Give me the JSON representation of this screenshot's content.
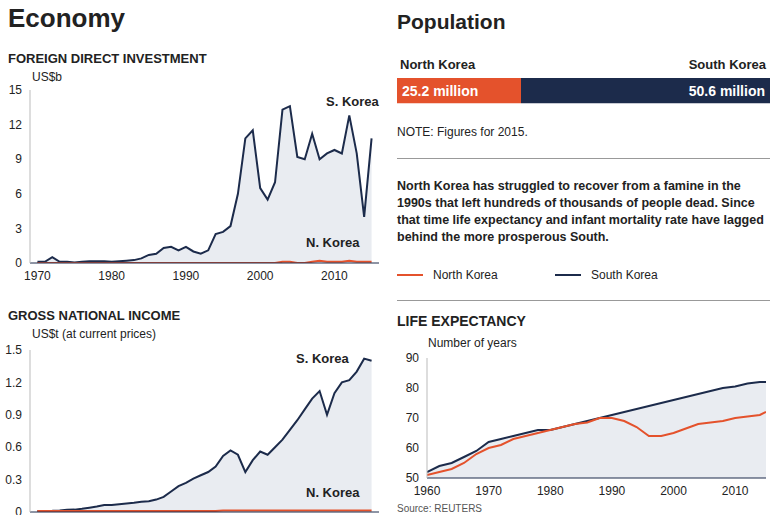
{
  "section_title": "Economy",
  "annotation": "North Korea has struggled to recover from a famine in the 1990s that left hundreds of thousands of people dead. Since that time life expectancy and infant mortality rate have lagged behind the more prosperous South.",
  "source": "Source: REUTERS",
  "chart_data": [
    {
      "type": "area",
      "title": "FOREIGN DIRECT INVESTMENT",
      "y_label": "US$b",
      "x": [
        1970,
        1971,
        1972,
        1973,
        1974,
        1975,
        1976,
        1977,
        1978,
        1979,
        1980,
        1981,
        1982,
        1983,
        1984,
        1985,
        1986,
        1987,
        1988,
        1989,
        1990,
        1991,
        1992,
        1993,
        1994,
        1995,
        1996,
        1997,
        1998,
        1999,
        2000,
        2001,
        2002,
        2003,
        2004,
        2005,
        2006,
        2007,
        2008,
        2009,
        2010,
        2011,
        2012,
        2013,
        2014,
        2015
      ],
      "series": [
        {
          "name": "S. Korea",
          "color": "#1c2b4b",
          "type": "area",
          "values": [
            0.1,
            0.1,
            0.5,
            0.1,
            0.1,
            0.05,
            0.1,
            0.15,
            0.15,
            0.15,
            0.1,
            0.15,
            0.2,
            0.25,
            0.4,
            0.7,
            0.8,
            1.3,
            1.4,
            1.1,
            1.4,
            1.0,
            0.8,
            1.1,
            2.5,
            2.7,
            3.2,
            6.0,
            10.8,
            11.5,
            6.5,
            5.5,
            7.0,
            13.3,
            13.6,
            9.2,
            9.0,
            11.2,
            9.0,
            9.5,
            9.8,
            9.5,
            12.8,
            9.5,
            4.0,
            10.8
          ]
        },
        {
          "name": "N. Korea",
          "color": "#e4522c",
          "type": "line",
          "values": [
            0,
            0,
            0,
            0,
            0,
            0,
            0,
            0,
            0,
            0,
            0,
            0,
            0,
            0,
            0,
            0,
            0,
            0,
            0,
            0,
            0,
            0,
            0,
            0,
            0,
            0,
            0,
            0,
            0,
            0,
            0,
            0,
            0,
            0.1,
            0.1,
            0,
            0,
            0.1,
            0.2,
            0.1,
            0.1,
            0.1,
            0.2,
            0.1,
            0.1,
            0.1
          ]
        }
      ],
      "xlim": [
        1969,
        2016
      ],
      "xticks": [
        1970,
        1980,
        1990,
        2000,
        2010
      ],
      "ylim": [
        0,
        15
      ],
      "yticks": [
        0,
        3,
        6,
        9,
        12,
        15
      ],
      "grid": false
    },
    {
      "type": "area",
      "title": "GROSS NATIONAL INCOME",
      "y_label": "US$t (at current prices)",
      "x": [
        1970,
        1971,
        1972,
        1973,
        1974,
        1975,
        1976,
        1977,
        1978,
        1979,
        1980,
        1981,
        1982,
        1983,
        1984,
        1985,
        1986,
        1987,
        1988,
        1989,
        1990,
        1991,
        1992,
        1993,
        1994,
        1995,
        1996,
        1997,
        1998,
        1999,
        2000,
        2001,
        2002,
        2003,
        2004,
        2005,
        2006,
        2007,
        2008,
        2009,
        2010,
        2011,
        2012,
        2013,
        2014,
        2015
      ],
      "series": [
        {
          "name": "S. Korea",
          "color": "#1c2b4b",
          "type": "area",
          "values": [
            0.01,
            0.01,
            0.011,
            0.014,
            0.02,
            0.022,
            0.03,
            0.04,
            0.05,
            0.065,
            0.065,
            0.072,
            0.078,
            0.085,
            0.094,
            0.1,
            0.115,
            0.14,
            0.19,
            0.24,
            0.27,
            0.31,
            0.34,
            0.37,
            0.42,
            0.52,
            0.57,
            0.53,
            0.37,
            0.48,
            0.56,
            0.53,
            0.6,
            0.67,
            0.76,
            0.85,
            0.95,
            1.05,
            1.12,
            0.9,
            1.1,
            1.2,
            1.22,
            1.3,
            1.42,
            1.4
          ]
        },
        {
          "name": "N. Korea",
          "color": "#e4522c",
          "type": "line",
          "values": [
            0.01,
            0.01,
            0.01,
            0.01,
            0.01,
            0.01,
            0.01,
            0.01,
            0.01,
            0.01,
            0.01,
            0.01,
            0.01,
            0.01,
            0.01,
            0.01,
            0.01,
            0.01,
            0.01,
            0.01,
            0.01,
            0.01,
            0.01,
            0.01,
            0.01,
            0.015,
            0.015,
            0.015,
            0.015,
            0.015,
            0.015,
            0.015,
            0.015,
            0.015,
            0.015,
            0.015,
            0.015,
            0.015,
            0.015,
            0.015,
            0.015,
            0.015,
            0.015,
            0.015,
            0.015,
            0.015
          ]
        }
      ],
      "xlim": [
        1969,
        2016
      ],
      "ylim": [
        0,
        1.5
      ],
      "yticks": [
        0,
        0.3,
        0.6,
        0.9,
        1.2,
        1.5
      ],
      "tick_labels": "y",
      "grid": false
    },
    {
      "type": "bar",
      "title": "Population",
      "note": "NOTE: Figures for 2015.",
      "orientation": "horizontal",
      "stacked": true,
      "categories": [
        null
      ],
      "series": [
        {
          "name": "North Korea",
          "color": "#e4522c",
          "values": [
            25.2
          ],
          "value_labels": [
            "25.2 million"
          ]
        },
        {
          "name": "South Korea",
          "color": "#1c2b4b",
          "values": [
            50.6
          ],
          "value_labels": [
            "50.6 million"
          ]
        }
      ],
      "xlim": [
        0,
        75.8
      ],
      "data_labels": true,
      "tick_labels": false
    },
    {
      "type": "area",
      "title": "LIFE EXPECTANCY",
      "y_label": "Number of years",
      "legend": "top",
      "x": [
        1960,
        1962,
        1964,
        1966,
        1968,
        1970,
        1972,
        1974,
        1976,
        1978,
        1980,
        1982,
        1984,
        1986,
        1988,
        1990,
        1992,
        1994,
        1996,
        1998,
        2000,
        2002,
        2004,
        2006,
        2008,
        2010,
        2012,
        2014,
        2015
      ],
      "series": [
        {
          "name": "North Korea",
          "color": "#e4522c",
          "type": "line",
          "values": [
            51,
            52,
            53,
            55,
            58,
            60,
            61,
            63,
            64,
            65,
            66,
            67,
            68,
            68.5,
            70,
            70,
            69,
            67,
            64,
            64,
            65,
            66.5,
            68,
            68.5,
            69,
            70,
            70.5,
            71,
            72
          ]
        },
        {
          "name": "South Korea",
          "color": "#1c2b4b",
          "type": "area",
          "values": [
            52,
            54,
            55,
            57,
            59,
            62,
            63,
            64,
            65,
            66,
            66,
            67,
            68,
            69,
            70,
            71,
            72,
            73,
            74,
            75,
            76,
            77,
            78,
            79,
            80,
            80.5,
            81.5,
            82,
            82
          ]
        }
      ],
      "xlim": [
        1960,
        2015
      ],
      "xticks": [
        1960,
        1970,
        1980,
        1990,
        2000,
        2010
      ],
      "ylim": [
        50,
        90
      ],
      "yticks": [
        50,
        60,
        70,
        80,
        90
      ],
      "grid": false
    }
  ]
}
